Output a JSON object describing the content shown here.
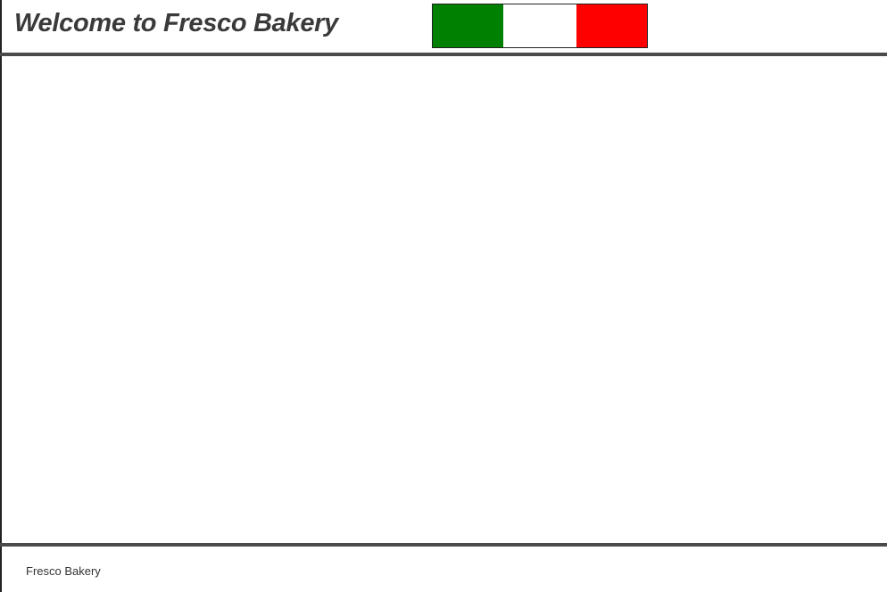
{
  "header": {
    "title": "Welcome to Fresco Bakery",
    "flag": {
      "icon": "italian-flag-icon",
      "colors": [
        "#008000",
        "#ffffff",
        "#ff0000"
      ]
    }
  },
  "footer": {
    "text": "Fresco Bakery"
  },
  "colors": {
    "title_text": "#3a3a3a",
    "rule": "#4a4a4a",
    "background": "#ffffff"
  }
}
